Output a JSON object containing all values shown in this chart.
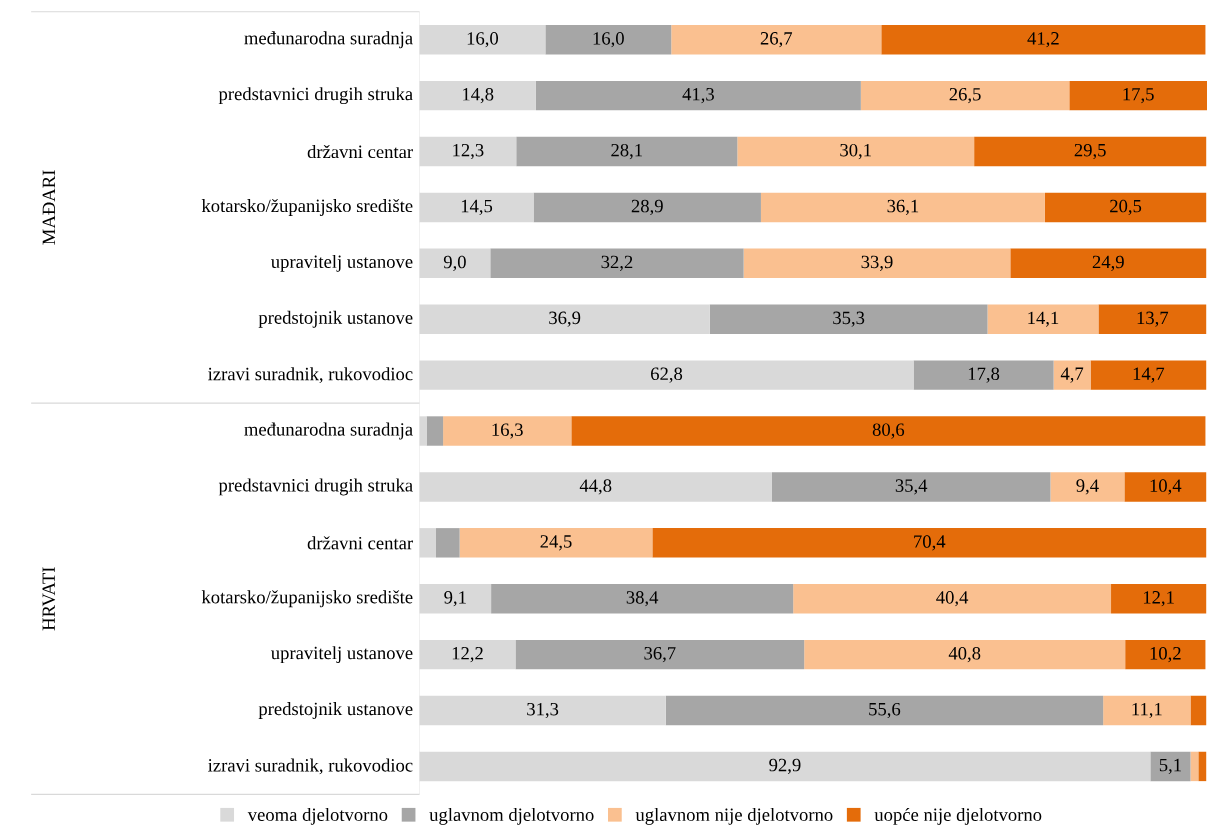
{
  "chart_data": {
    "type": "bar",
    "orientation": "horizontal",
    "stacked": true,
    "categories": [
      "međunarodna suradnja",
      "predstavnici drugih struka",
      "državni centar",
      "kotarsko/županijsko središte",
      "upravitelj ustanove",
      "predstojnik ustanove",
      "izravi suradnik, rukovodioc",
      "međunarodna suradnja",
      "predstavnici drugih struka",
      "državni centar",
      "kotarsko/županijsko središte",
      "upravitelj ustanove",
      "predstojnik ustanove",
      "izravi suradnik, rukovodioc"
    ],
    "series": [
      {
        "name": "veoma djelotvorno",
        "color": "#d9d9d9",
        "values": [
          16.0,
          14.8,
          12.3,
          14.5,
          9.0,
          36.9,
          62.8,
          0.9,
          44.8,
          2.1,
          9.1,
          12.2,
          31.3,
          92.9
        ],
        "value_labels": [
          "16,0",
          "14,8",
          "12,3",
          "14,5",
          "9,0",
          "36,9",
          "62,8",
          null,
          "44,8",
          null,
          "9,1",
          "12,2",
          "31,3",
          "92,9"
        ]
      },
      {
        "name": "uglavnom djelotvorno",
        "color": "#a6a6a6",
        "values": [
          16.0,
          41.3,
          28.1,
          28.9,
          32.2,
          35.3,
          17.8,
          2.1,
          35.4,
          3.0,
          38.4,
          36.7,
          55.6,
          5.1
        ],
        "value_labels": [
          "16,0",
          "41,3",
          "28,1",
          "28,9",
          "32,2",
          "35,3",
          "17,8",
          null,
          "35,4",
          null,
          "38,4",
          "36,7",
          "55,6",
          "5,1"
        ]
      },
      {
        "name": "uglavnom nije djelotvorno",
        "color": "#fac090",
        "values": [
          26.7,
          26.5,
          30.1,
          36.1,
          33.9,
          14.1,
          4.7,
          16.3,
          9.4,
          24.5,
          40.4,
          40.8,
          11.1,
          1.0
        ],
        "value_labels": [
          "26,7",
          "26,5",
          "30,1",
          "36,1",
          "33,9",
          "14,1",
          "4,7",
          "16,3",
          "9,4",
          "24,5",
          "40,4",
          "40,8",
          "11,1",
          null
        ]
      },
      {
        "name": "uopće nije djelotvorno",
        "color": "#e46c0a",
        "values": [
          41.2,
          17.5,
          29.5,
          20.5,
          24.9,
          13.7,
          14.7,
          80.6,
          10.4,
          70.4,
          12.1,
          10.2,
          2.0,
          1.0
        ],
        "value_labels": [
          "41,2",
          "17,5",
          "29,5",
          "20,5",
          "24,9",
          "13,7",
          "14,7",
          "80,6",
          "10,4",
          "70,4",
          "12,1",
          "10,2",
          null,
          null
        ]
      }
    ],
    "xlim": [
      0,
      100.1
    ],
    "tick_labels": "y",
    "legend": "bottom",
    "annotations": [
      "MAĐARI",
      "HRVATI"
    ]
  }
}
